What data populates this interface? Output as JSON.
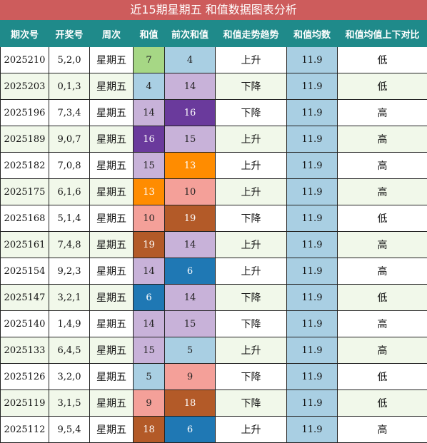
{
  "title": "近15期星期五 和值数据图表分析",
  "headers": [
    "期次号",
    "开奖号",
    "周次",
    "和值",
    "前次和值",
    "和值走势趋势",
    "和值均数",
    "和值均值上下对比"
  ],
  "colors": {
    "title_bg": "#cd5c5c",
    "header_bg": "#1f8a8a",
    "row_alt_bg": "#f1f8ea",
    "avg_bg": "#a9cfe3"
  },
  "rows": [
    {
      "period": "2025210",
      "numbers": "5,2,0",
      "weekday": "星期五",
      "sum": "7",
      "sum_color": "#a6d785",
      "sum_text": "#222222",
      "prev": "4",
      "prev_color": "#a9cfe3",
      "prev_text": "#222222",
      "trend": "上升",
      "avg": "11.9",
      "compare": "低"
    },
    {
      "period": "2025203",
      "numbers": "0,1,3",
      "weekday": "星期五",
      "sum": "4",
      "sum_color": "#a9cfe3",
      "sum_text": "#222222",
      "prev": "14",
      "prev_color": "#c8b2d9",
      "prev_text": "#222222",
      "trend": "下降",
      "avg": "11.9",
      "compare": "低"
    },
    {
      "period": "2025196",
      "numbers": "7,3,4",
      "weekday": "星期五",
      "sum": "14",
      "sum_color": "#c8b2d9",
      "sum_text": "#222222",
      "prev": "16",
      "prev_color": "#6a3a9c",
      "prev_text": "#ffffff",
      "trend": "下降",
      "avg": "11.9",
      "compare": "高"
    },
    {
      "period": "2025189",
      "numbers": "9,0,7",
      "weekday": "星期五",
      "sum": "16",
      "sum_color": "#6a3a9c",
      "sum_text": "#ffffff",
      "prev": "15",
      "prev_color": "#c8b2d9",
      "prev_text": "#222222",
      "trend": "上升",
      "avg": "11.9",
      "compare": "高"
    },
    {
      "period": "2025182",
      "numbers": "7,0,8",
      "weekday": "星期五",
      "sum": "15",
      "sum_color": "#c8b2d9",
      "sum_text": "#222222",
      "prev": "13",
      "prev_color": "#ff8c00",
      "prev_text": "#ffffff",
      "trend": "上升",
      "avg": "11.9",
      "compare": "高"
    },
    {
      "period": "2025175",
      "numbers": "6,1,6",
      "weekday": "星期五",
      "sum": "13",
      "sum_color": "#ff8c00",
      "sum_text": "#ffffff",
      "prev": "10",
      "prev_color": "#f4a099",
      "prev_text": "#222222",
      "trend": "上升",
      "avg": "11.9",
      "compare": "高"
    },
    {
      "period": "2025168",
      "numbers": "5,1,4",
      "weekday": "星期五",
      "sum": "10",
      "sum_color": "#f4a099",
      "sum_text": "#222222",
      "prev": "19",
      "prev_color": "#b35a28",
      "prev_text": "#ffffff",
      "trend": "下降",
      "avg": "11.9",
      "compare": "低"
    },
    {
      "period": "2025161",
      "numbers": "7,4,8",
      "weekday": "星期五",
      "sum": "19",
      "sum_color": "#b35a28",
      "sum_text": "#ffffff",
      "prev": "14",
      "prev_color": "#c8b2d9",
      "prev_text": "#222222",
      "trend": "上升",
      "avg": "11.9",
      "compare": "高"
    },
    {
      "period": "2025154",
      "numbers": "9,2,3",
      "weekday": "星期五",
      "sum": "14",
      "sum_color": "#c8b2d9",
      "sum_text": "#222222",
      "prev": "6",
      "prev_color": "#1f78b4",
      "prev_text": "#ffffff",
      "trend": "上升",
      "avg": "11.9",
      "compare": "高"
    },
    {
      "period": "2025147",
      "numbers": "3,2,1",
      "weekday": "星期五",
      "sum": "6",
      "sum_color": "#1f78b4",
      "sum_text": "#ffffff",
      "prev": "14",
      "prev_color": "#c8b2d9",
      "prev_text": "#222222",
      "trend": "下降",
      "avg": "11.9",
      "compare": "低"
    },
    {
      "period": "2025140",
      "numbers": "1,4,9",
      "weekday": "星期五",
      "sum": "14",
      "sum_color": "#c8b2d9",
      "sum_text": "#222222",
      "prev": "15",
      "prev_color": "#c8b2d9",
      "prev_text": "#222222",
      "trend": "下降",
      "avg": "11.9",
      "compare": "高"
    },
    {
      "period": "2025133",
      "numbers": "6,4,5",
      "weekday": "星期五",
      "sum": "15",
      "sum_color": "#c8b2d9",
      "sum_text": "#222222",
      "prev": "5",
      "prev_color": "#a9cfe3",
      "prev_text": "#222222",
      "trend": "上升",
      "avg": "11.9",
      "compare": "高"
    },
    {
      "period": "2025126",
      "numbers": "3,2,0",
      "weekday": "星期五",
      "sum": "5",
      "sum_color": "#a9cfe3",
      "sum_text": "#222222",
      "prev": "9",
      "prev_color": "#f4a099",
      "prev_text": "#222222",
      "trend": "下降",
      "avg": "11.9",
      "compare": "低"
    },
    {
      "period": "2025119",
      "numbers": "3,1,5",
      "weekday": "星期五",
      "sum": "9",
      "sum_color": "#f4a099",
      "sum_text": "#222222",
      "prev": "18",
      "prev_color": "#b35a28",
      "prev_text": "#ffffff",
      "trend": "下降",
      "avg": "11.9",
      "compare": "低"
    },
    {
      "period": "2025112",
      "numbers": "9,5,4",
      "weekday": "星期五",
      "sum": "18",
      "sum_color": "#b35a28",
      "sum_text": "#ffffff",
      "prev": "6",
      "prev_color": "#1f78b4",
      "prev_text": "#ffffff",
      "trend": "上升",
      "avg": "11.9",
      "compare": "高"
    }
  ]
}
